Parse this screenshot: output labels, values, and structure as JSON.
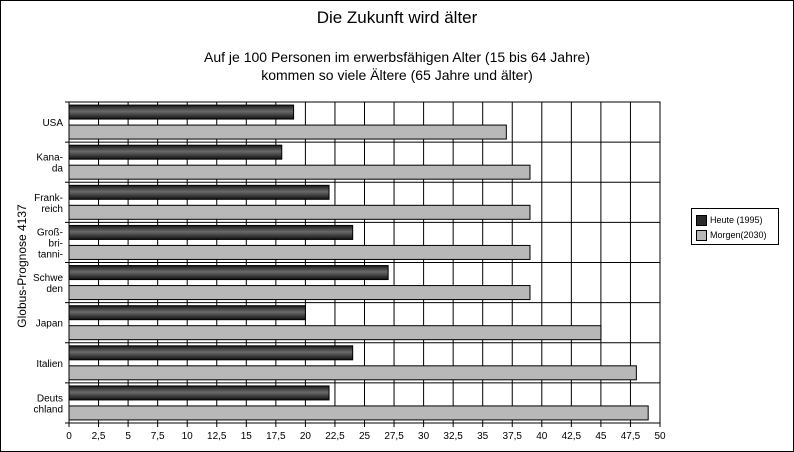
{
  "title": "Die Zukunft wird älter",
  "subtitle": [
    "Auf je 100 Personen im erwerbsfähigen Alter (15 bis 64 Jahre)",
    "kommen so viele Ältere (65 Jahre und älter)"
  ],
  "source_label": "Globus-Prognose 4137",
  "legend": [
    "Heute (1995)",
    "Morgen(2030)"
  ],
  "chart_data": {
    "type": "bar",
    "orientation": "horizontal",
    "title": "Die Zukunft wird älter",
    "categories": [
      [
        "USA"
      ],
      [
        "Kana-",
        "da"
      ],
      [
        "Frank-",
        "reich"
      ],
      [
        "Groß-",
        "bri-",
        "tanni-"
      ],
      [
        "Schwe",
        "den"
      ],
      [
        "Japan"
      ],
      [
        "Italien"
      ],
      [
        "Deuts",
        "chland"
      ]
    ],
    "series": [
      {
        "name": "Heute (1995)",
        "color": "#2a2a2a",
        "values": [
          19,
          18,
          22,
          24,
          27,
          20,
          24,
          22
        ]
      },
      {
        "name": "Morgen(2030)",
        "color": "#b8b8b8",
        "values": [
          37,
          39,
          39,
          39,
          39,
          45,
          48,
          49
        ]
      }
    ],
    "xlim": [
      0,
      50
    ],
    "xticks": [
      "0",
      "2,5",
      "5",
      "7,5",
      "10",
      "12,5",
      "15",
      "17,5",
      "20",
      "22,5",
      "25",
      "27,5",
      "30",
      "32,5",
      "35",
      "37,5",
      "40",
      "42,5",
      "45",
      "47,5",
      "50"
    ],
    "grid": true,
    "legend_position": "right"
  }
}
